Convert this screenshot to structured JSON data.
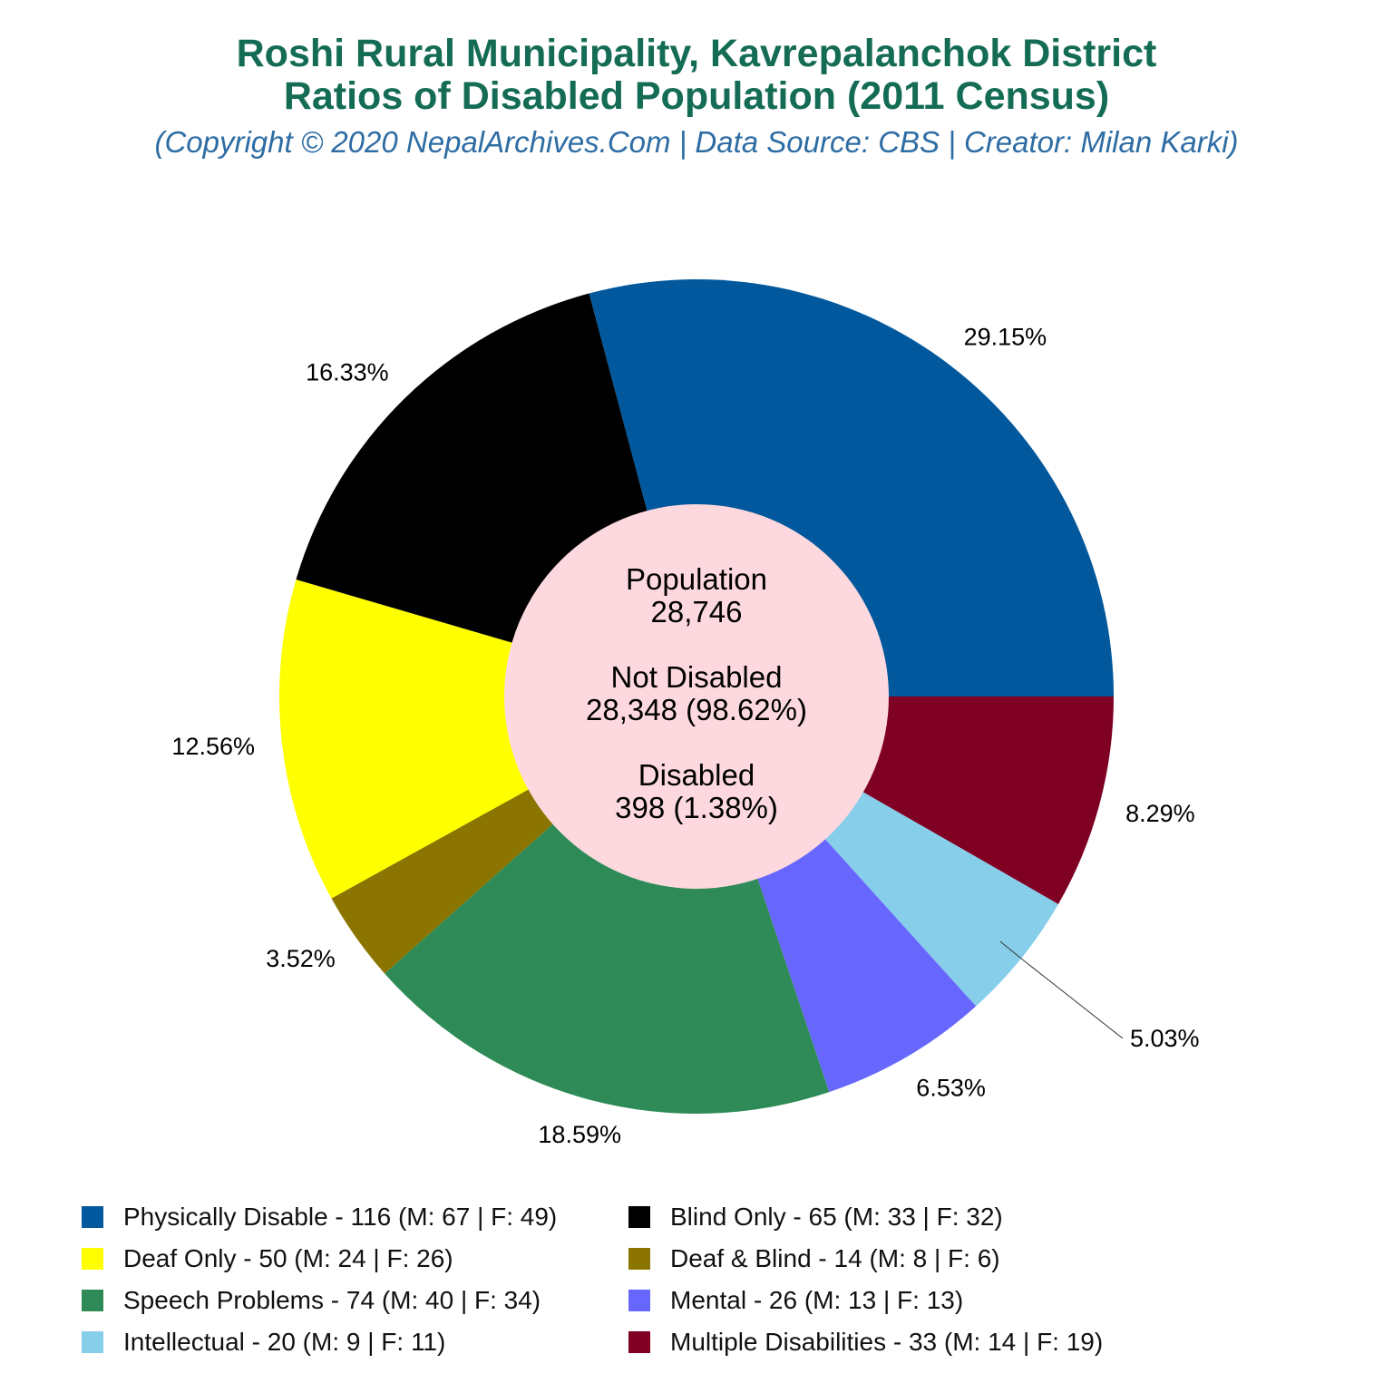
{
  "header": {
    "title_line1": "Roshi Rural Municipality, Kavrepalanchok District",
    "title_line2": "Ratios of Disabled Population (2011 Census)",
    "subtitle": "(Copyright © 2020 NepalArchives.Com | Data Source: CBS | Creator: Milan Karki)"
  },
  "center": {
    "population_label": "Population",
    "population_value": "28,746",
    "not_disabled_label": "Not Disabled",
    "not_disabled_value": "28,348 (98.62%)",
    "disabled_label": "Disabled",
    "disabled_value": "398 (1.38%)",
    "color": "#FDD9DF"
  },
  "chart_data": {
    "type": "pie",
    "donut": true,
    "legend_position": "bottom",
    "slices": [
      {
        "label": "Physically Disable",
        "value": 116,
        "male": 67,
        "female": 49,
        "percent_label": "29.15%",
        "color": "#02589C",
        "legend": "Physically Disable - 116 (M: 67 | F: 49)"
      },
      {
        "label": "Multiple Disabilities",
        "value": 33,
        "male": 14,
        "female": 19,
        "percent_label": "8.29%",
        "color": "#7F0022",
        "legend": "Multiple Disabilities - 33 (M: 14 | F: 19)"
      },
      {
        "label": "Intellectual",
        "value": 20,
        "male": 9,
        "female": 11,
        "percent_label": "5.03%",
        "color": "#87CEEB",
        "legend": "Intellectual - 20 (M: 9 | F: 11)"
      },
      {
        "label": "Mental",
        "value": 26,
        "male": 13,
        "female": 13,
        "percent_label": "6.53%",
        "color": "#6767FE",
        "legend": "Mental - 26 (M: 13 | F: 13)"
      },
      {
        "label": "Speech Problems",
        "value": 74,
        "male": 40,
        "female": 34,
        "percent_label": "18.59%",
        "color": "#2E8B57",
        "legend": "Speech Problems - 74 (M: 40 | F: 34)"
      },
      {
        "label": "Deaf & Blind",
        "value": 14,
        "male": 8,
        "female": 6,
        "percent_label": "3.52%",
        "color": "#8B7500",
        "legend": "Deaf & Blind - 14 (M: 8 | F: 6)"
      },
      {
        "label": "Deaf Only",
        "value": 50,
        "male": 24,
        "female": 26,
        "percent_label": "12.56%",
        "color": "#FFFF00",
        "legend": "Deaf Only - 50 (M: 24 | F: 26)"
      },
      {
        "label": "Blind Only",
        "value": 65,
        "male": 33,
        "female": 32,
        "percent_label": "16.33%",
        "color": "#000000",
        "legend": "Blind Only - 65 (M: 33 | F: 32)"
      }
    ],
    "legend_order": [
      "Physically Disable",
      "Blind Only",
      "Deaf Only",
      "Deaf & Blind",
      "Speech Problems",
      "Mental",
      "Intellectual",
      "Multiple Disabilities"
    ]
  }
}
